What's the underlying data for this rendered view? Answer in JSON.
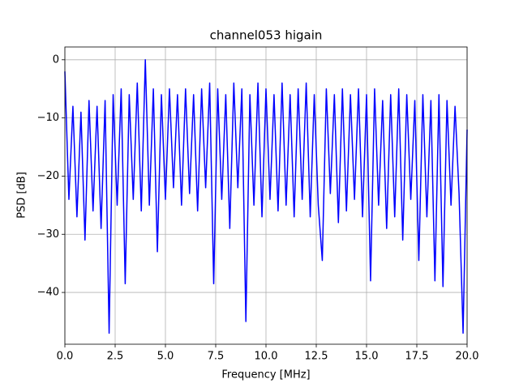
{
  "chart_data": {
    "type": "line",
    "title": "channel053 higain",
    "xlabel": "Frequency [MHz]",
    "ylabel": "PSD [dB]",
    "x": [
      0.0,
      0.2,
      0.4,
      0.6,
      0.8,
      1.0,
      1.2,
      1.4,
      1.6,
      1.8,
      2.0,
      2.2,
      2.4,
      2.6,
      2.8,
      3.0,
      3.2,
      3.4,
      3.6,
      3.8,
      4.0,
      4.2,
      4.4,
      4.6,
      4.8,
      5.0,
      5.2,
      5.4,
      5.6,
      5.8,
      6.0,
      6.2,
      6.4,
      6.6,
      6.8,
      7.0,
      7.2,
      7.4,
      7.6,
      7.8,
      8.0,
      8.2,
      8.4,
      8.6,
      8.8,
      9.0,
      9.2,
      9.4,
      9.6,
      9.8,
      10.0,
      10.2,
      10.4,
      10.6,
      10.8,
      11.0,
      11.2,
      11.4,
      11.6,
      11.8,
      12.0,
      12.2,
      12.4,
      12.6,
      12.8,
      13.0,
      13.2,
      13.4,
      13.6,
      13.8,
      14.0,
      14.2,
      14.4,
      14.6,
      14.8,
      15.0,
      15.2,
      15.4,
      15.6,
      15.8,
      16.0,
      16.2,
      16.4,
      16.6,
      16.8,
      17.0,
      17.2,
      17.4,
      17.6,
      17.8,
      18.0,
      18.2,
      18.4,
      18.6,
      18.8,
      19.0,
      19.2,
      19.4,
      19.6,
      19.8,
      20.0
    ],
    "series": [
      {
        "color": "#0000ff",
        "values": [
          -2,
          -24,
          -8,
          -27,
          -9,
          -31,
          -7,
          -26,
          -8,
          -29,
          -7,
          -47,
          -6,
          -25,
          -5,
          -38.5,
          -6,
          -24,
          -4,
          -26,
          0,
          -25,
          -5,
          -33,
          -6,
          -24,
          -5,
          -22,
          -6,
          -25,
          -5,
          -23,
          -6,
          -26,
          -5,
          -22,
          -4,
          -38.5,
          -5,
          -24,
          -6,
          -29,
          -4,
          -22,
          -5,
          -45,
          -6,
          -25,
          -4,
          -27,
          -5,
          -24,
          -6,
          -26,
          -4,
          -25,
          -6,
          -27,
          -5,
          -24,
          -4,
          -27,
          -6,
          -25,
          -34.5,
          -5,
          -23,
          -6,
          -28,
          -5,
          -26,
          -6,
          -24,
          -5,
          -27,
          -6,
          -38,
          -5,
          -25,
          -7,
          -29,
          -6,
          -27,
          -5,
          -31,
          -6,
          -24,
          -7,
          -34.5,
          -6,
          -27,
          -7,
          -38,
          -6,
          -39,
          -7,
          -25,
          -8,
          -23,
          -47,
          -12
        ]
      }
    ],
    "xlim": [
      0,
      20
    ],
    "ylim": [
      -48.9,
      2.2
    ],
    "xticks": [
      {
        "value": 0,
        "label": "0.0"
      },
      2.5,
      {
        "value": 5,
        "label": "5.0"
      },
      7.5,
      {
        "value": 10,
        "label": "10.0"
      },
      12.5,
      {
        "value": 15,
        "label": "15.0"
      },
      17.5,
      {
        "value": 20,
        "label": "20.0"
      }
    ],
    "yticks": [
      0,
      {
        "value": -10,
        "label": "−10"
      },
      {
        "value": -20,
        "label": "−20"
      },
      {
        "value": -30,
        "label": "−30"
      },
      {
        "value": -40,
        "label": "−40"
      }
    ],
    "grid": true
  }
}
